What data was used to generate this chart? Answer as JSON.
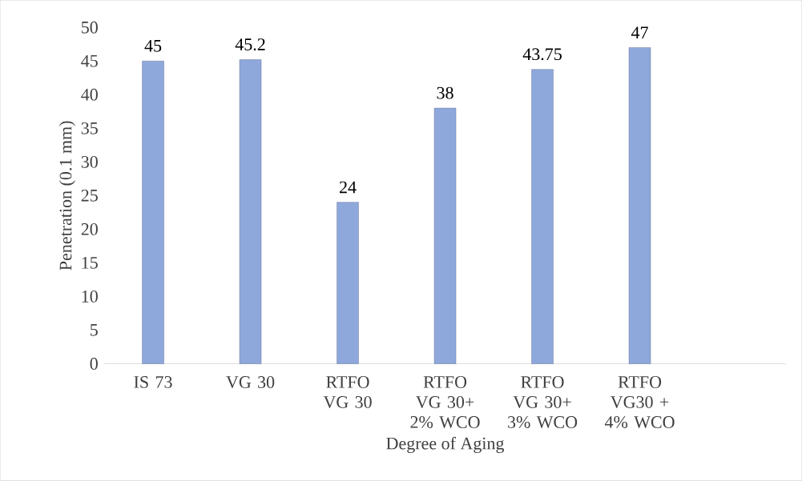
{
  "chart_data": {
    "type": "bar",
    "xlabel": "Degree of Aging",
    "ylabel": "Penetration (0.1 mm)",
    "categories": [
      "IS 73",
      "VG 30",
      "RTFO VG 30",
      "RTFO VG 30+ 2% WCO",
      "RTFO VG 30+ 3% WCO",
      "RTFO VG30 + 4% WCO",
      null
    ],
    "values": [
      45,
      45.2,
      24,
      38,
      43.75,
      47,
      null
    ],
    "value_labels": [
      "45",
      "45.2",
      "24",
      "38",
      "43.75",
      "47",
      null
    ],
    "color": "#8fa8dc",
    "ylim": [
      0,
      50
    ],
    "yticks": [
      0,
      5,
      10,
      15,
      20,
      25,
      30,
      35,
      40,
      45,
      50
    ],
    "grid": false
  }
}
